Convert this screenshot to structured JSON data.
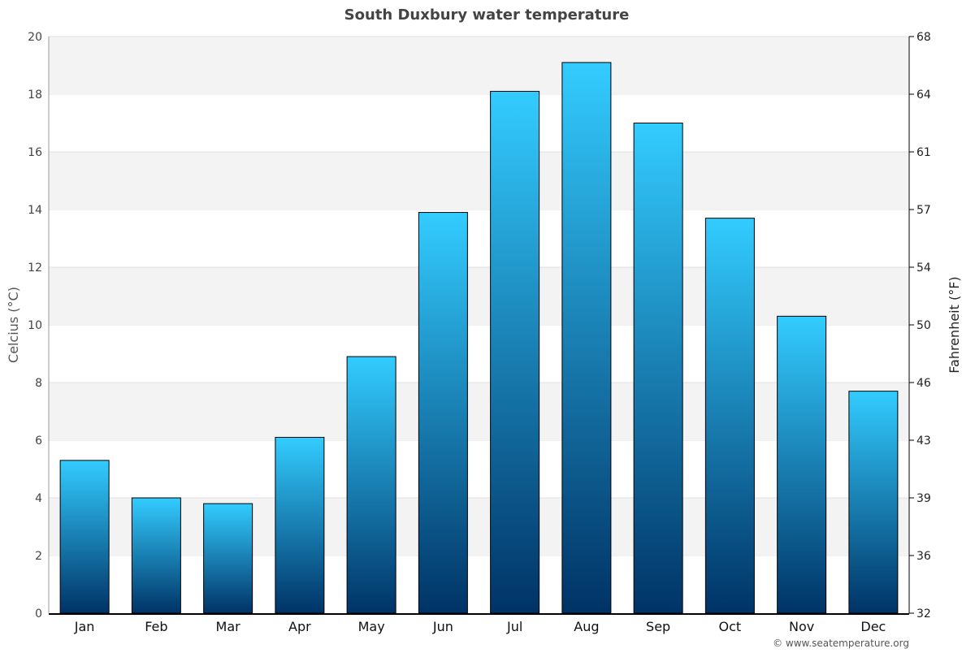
{
  "chart_data": {
    "type": "bar",
    "title": "South Duxbury water temperature",
    "ylabel": "Celcius (°C)",
    "y2label": "Fahrenheit (°F)",
    "xlabel": "",
    "categories": [
      "Jan",
      "Feb",
      "Mar",
      "Apr",
      "May",
      "Jun",
      "Jul",
      "Aug",
      "Sep",
      "Oct",
      "Nov",
      "Dec"
    ],
    "values": [
      5.3,
      4.0,
      3.8,
      6.1,
      8.9,
      13.9,
      18.1,
      19.1,
      17.0,
      13.7,
      10.3,
      7.7
    ],
    "ylim": [
      0,
      20
    ],
    "yticks": [
      "0",
      "2",
      "4",
      "6",
      "8",
      "10",
      "12",
      "14",
      "16",
      "18",
      "20"
    ],
    "y2ticks": [
      "32",
      "36",
      "39",
      "43",
      "46",
      "50",
      "54",
      "57",
      "61",
      "64",
      "68"
    ],
    "grid": true,
    "colors": {
      "bar_top": "#33ccff",
      "bar_bottom": "#003366",
      "band": "#f3f3f3"
    }
  },
  "footer": {
    "credit": "© www.seatemperature.org"
  }
}
